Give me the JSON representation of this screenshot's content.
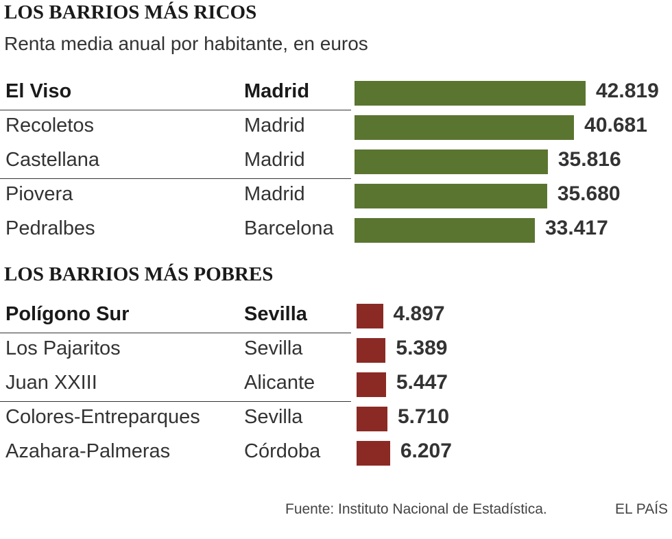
{
  "rich": {
    "title": "LOS BARRIOS MÁS RICOS",
    "subtitle": "Renta media anual por habitante, en euros"
  },
  "poor": {
    "title": "LOS BARRIOS MÁS POBRES"
  },
  "colors": {
    "rich_bar": "#5a7530",
    "poor_bar": "#8b2a24"
  },
  "chart_data": [
    {
      "type": "bar",
      "orientation": "horizontal",
      "title": "LOS BARRIOS MÁS RICOS",
      "subtitle": "Renta media anual por habitante, en euros",
      "rows": [
        {
          "name": "El Viso",
          "city": "Madrid",
          "value": 42819,
          "label": "42.819"
        },
        {
          "name": "Recoletos",
          "city": "Madrid",
          "value": 40681,
          "label": "40.681"
        },
        {
          "name": "Castellana",
          "city": "Madrid",
          "value": 35816,
          "label": "35.816"
        },
        {
          "name": "Piovera",
          "city": "Madrid",
          "value": 35680,
          "label": "35.680"
        },
        {
          "name": "Pedralbes",
          "city": "Barcelona",
          "value": 33417,
          "label": "33.417"
        }
      ],
      "xlim": [
        0,
        42819
      ]
    },
    {
      "type": "bar",
      "orientation": "horizontal",
      "title": "LOS BARRIOS MÁS POBRES",
      "rows": [
        {
          "name": "Polígono Sur",
          "city": "Sevilla",
          "value": 4897,
          "label": "4.897"
        },
        {
          "name": "Los Pajaritos",
          "city": "Sevilla",
          "value": 5389,
          "label": "5.389"
        },
        {
          "name": "Juan XXIII",
          "city": "Alicante",
          "value": 5447,
          "label": "5.447"
        },
        {
          "name": "Colores-Entreparques",
          "city": "Sevilla",
          "value": 5710,
          "label": "5.710"
        },
        {
          "name": "Azahara-Palmeras",
          "city": "Córdoba",
          "value": 6207,
          "label": "6.207"
        }
      ]
    }
  ],
  "footer": {
    "source": "Fuente: Instituto Nacional de Estadística.",
    "brand": "EL PAÍS"
  }
}
